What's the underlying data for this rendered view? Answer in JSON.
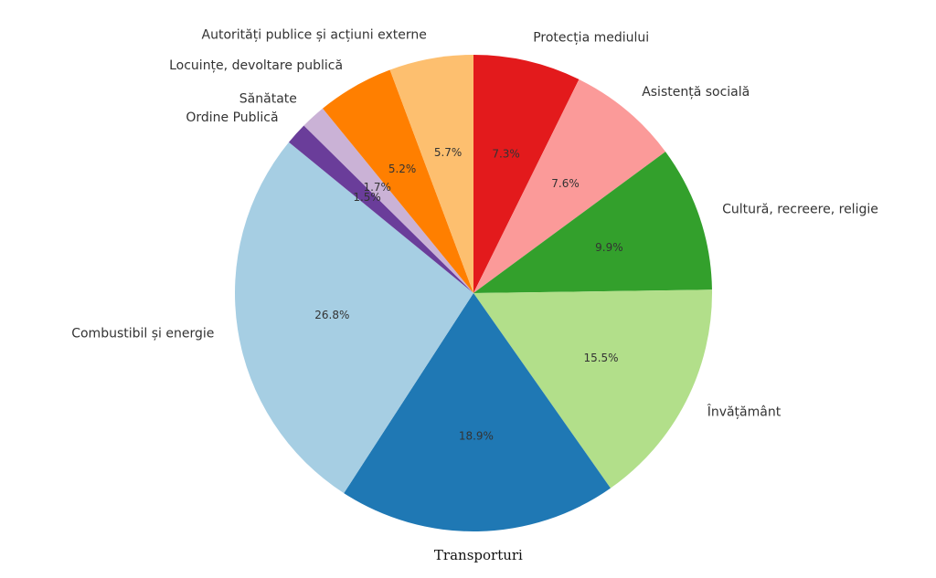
{
  "chart_data": {
    "type": "pie",
    "title": "",
    "start_angle_deg": 90,
    "direction": "clockwise",
    "legend": "none",
    "slices": [
      {
        "label": "Protecția mediului",
        "value": 7.3,
        "pct_label": "7.3%",
        "color": "#e31a1c"
      },
      {
        "label": "Asistență socială",
        "value": 7.6,
        "pct_label": "7.6%",
        "color": "#fb9a99"
      },
      {
        "label": "Cultură, recreere, religie",
        "value": 9.9,
        "pct_label": "9.9%",
        "color": "#33a02c"
      },
      {
        "label": "Învățământ",
        "value": 15.5,
        "pct_label": "15.5%",
        "color": "#b2df8a"
      },
      {
        "label": "Transporturi",
        "value": 18.9,
        "pct_label": "18.9%",
        "color": "#1f78b4"
      },
      {
        "label": "Combustibil și energie",
        "value": 26.8,
        "pct_label": "26.8%",
        "color": "#a6cee3"
      },
      {
        "label": "Ordine Publică",
        "value": 1.5,
        "pct_label": "1.5%",
        "color": "#6a3d9a"
      },
      {
        "label": "Sănătate",
        "value": 1.7,
        "pct_label": "1.7%",
        "color": "#cab2d6"
      },
      {
        "label": "Locuințe, devoltare publică",
        "value": 5.2,
        "pct_label": "5.2%",
        "color": "#ff7f00"
      },
      {
        "label": "Autorități publice și acțiuni externe",
        "value": 5.7,
        "pct_label": "5.7%",
        "color": "#fdbf6f"
      }
    ]
  }
}
